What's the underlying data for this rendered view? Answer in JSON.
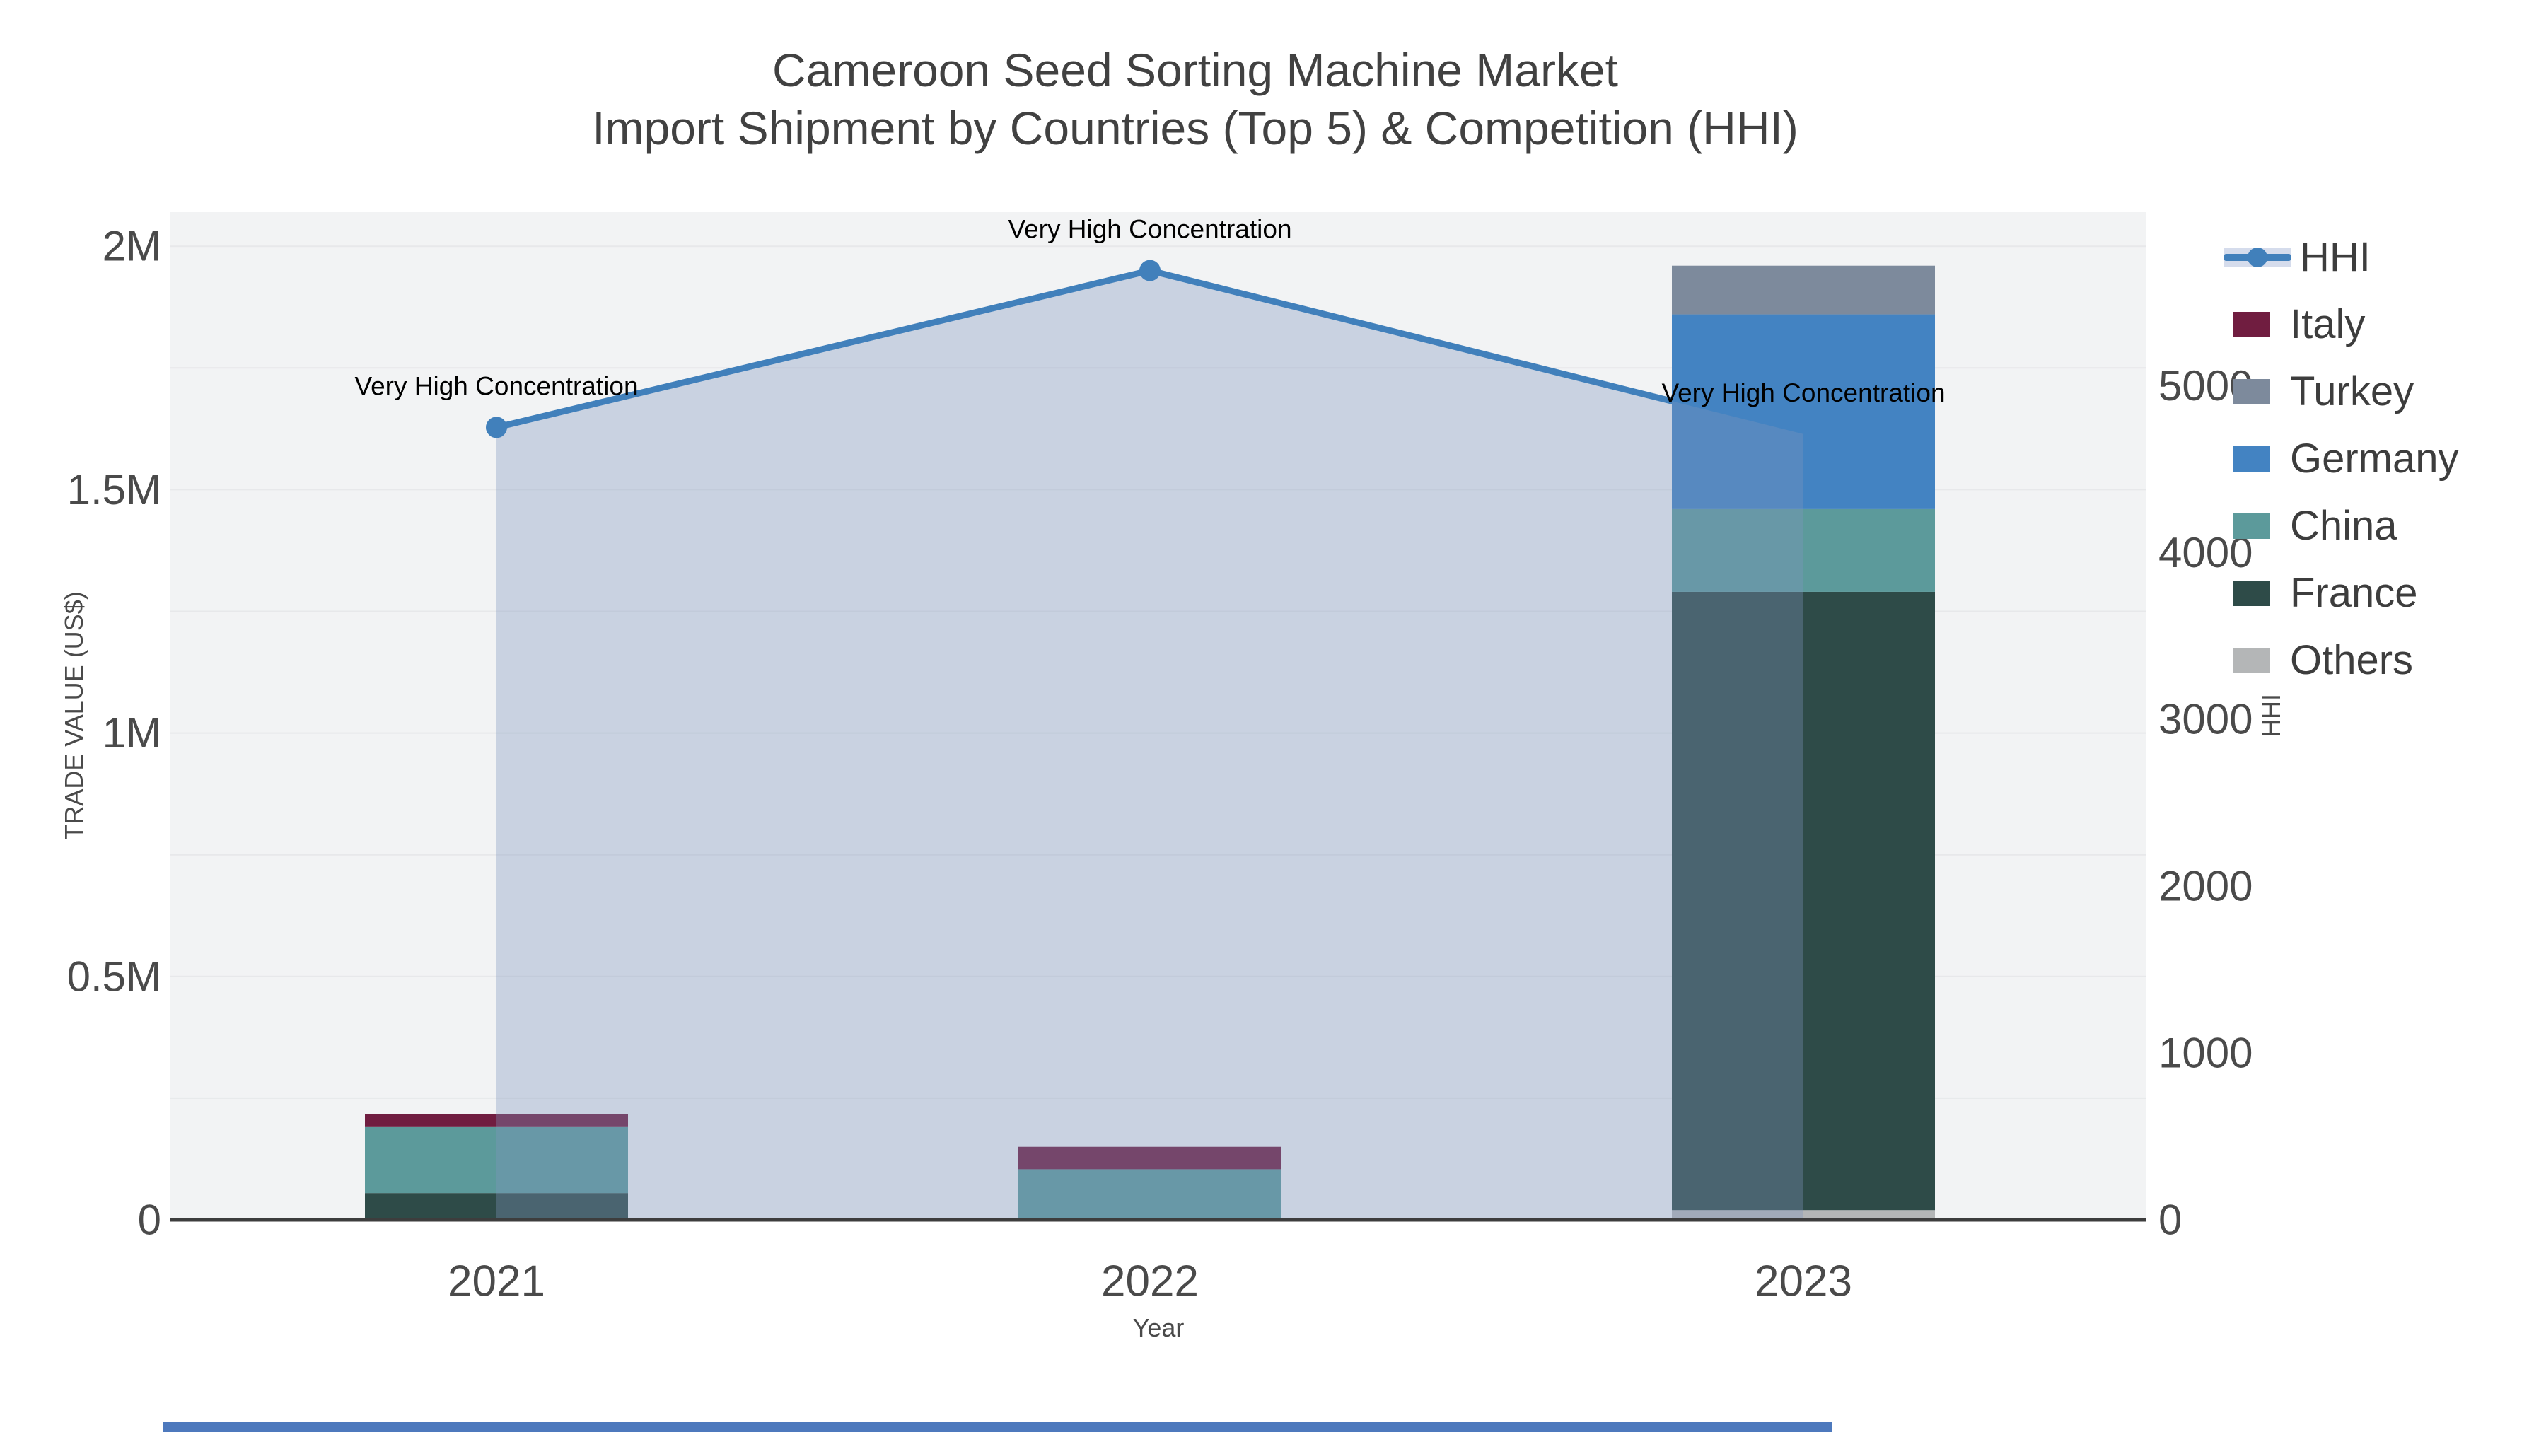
{
  "title": {
    "line1": "Cameroon Seed Sorting Machine Market",
    "line2": "Import Shipment by Countries (Top 5) & Competition (HHI)"
  },
  "axes": {
    "x": {
      "title": "Year",
      "categories": [
        "2021",
        "2022",
        "2023"
      ]
    },
    "y_left": {
      "title": "TRADE VALUE (US$)",
      "tick_labels": [
        "0",
        "0.5M",
        "1M",
        "1.5M",
        "2M"
      ],
      "tick_values": [
        0,
        500000,
        1000000,
        1500000,
        2000000
      ],
      "max": 2070000
    },
    "y_right": {
      "title": "HHI",
      "tick_labels": [
        "0",
        "1000",
        "2000",
        "3000",
        "4000",
        "5000"
      ],
      "tick_values": [
        0,
        1000,
        2000,
        3000,
        4000,
        5000
      ],
      "max": 6040
    }
  },
  "legend": {
    "position": "top-right-outside",
    "items": [
      {
        "label": "HHI",
        "type": "line",
        "color": "#4180bb"
      },
      {
        "label": "Italy",
        "type": "bar",
        "color": "#701d40"
      },
      {
        "label": "Turkey",
        "type": "bar",
        "color": "#7d8a9c"
      },
      {
        "label": "Germany",
        "type": "bar",
        "color": "#4383c2"
      },
      {
        "label": "China",
        "type": "bar",
        "color": "#5c9a9b"
      },
      {
        "label": "France",
        "type": "bar",
        "color": "#2e4b48"
      },
      {
        "label": "Others",
        "type": "bar",
        "color": "#b4b6b7"
      }
    ]
  },
  "chart_data": {
    "type": "bar",
    "subtype": "stacked-bars-with-line",
    "categories": [
      "2021",
      "2022",
      "2023"
    ],
    "series": [
      {
        "name": "Italy",
        "type": "bar",
        "color": "#701d40",
        "values": [
          25000,
          46000,
          0
        ]
      },
      {
        "name": "Turkey",
        "type": "bar",
        "color": "#7d8a9c",
        "values": [
          0,
          0,
          100000
        ]
      },
      {
        "name": "Germany",
        "type": "bar",
        "color": "#4383c2",
        "values": [
          0,
          0,
          400000
        ]
      },
      {
        "name": "China",
        "type": "bar",
        "color": "#5c9a9b",
        "values": [
          137000,
          104000,
          170000
        ]
      },
      {
        "name": "France",
        "type": "bar",
        "color": "#2e4b48",
        "values": [
          55000,
          0,
          1270000
        ]
      },
      {
        "name": "Others",
        "type": "bar",
        "color": "#b4b6b7",
        "values": [
          0,
          0,
          20000
        ]
      }
    ],
    "stack_order_bottom_to_top": [
      "Others",
      "France",
      "China",
      "Germany",
      "Turkey",
      "Italy"
    ],
    "line_series": {
      "name": "HHI",
      "axis": "right",
      "values": [
        4750,
        5690,
        4710
      ],
      "color": "#4180bb",
      "area_fill": "rgba(126,150,188,0.35)"
    },
    "annotations": [
      {
        "category": "2021",
        "text": "Very High Concentration"
      },
      {
        "category": "2022",
        "text": "Very High Concentration"
      },
      {
        "category": "2023",
        "text": "Very High Concentration"
      }
    ],
    "title": "Cameroon Seed Sorting Machine Market Import Shipment by Countries (Top 5) & Competition (HHI)",
    "xlabel": "Year",
    "ylabel_left": "TRADE VALUE (US$)",
    "ylabel_right": "HHI",
    "ylim_left": [
      0,
      2070000
    ],
    "ylim_right": [
      0,
      6040
    ],
    "grid": true,
    "grid_step_left": 250000
  },
  "style": {
    "plot_bg": "#f2f3f4",
    "grid_color": "#e7e8ea",
    "axis_line_color": "#3d3d3d",
    "tick_color": "#4a4a4a",
    "annotation_color": "#000000"
  }
}
